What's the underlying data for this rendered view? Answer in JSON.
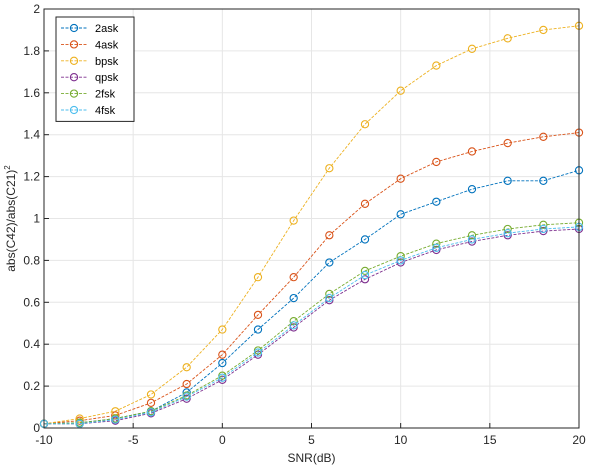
{
  "chart_data": {
    "type": "line",
    "xlabel": "SNR(dB)",
    "ylabel": "abs(C42)/abs(C21)",
    "ylabel_superscript": "2",
    "xlim": [
      -10,
      20
    ],
    "ylim": [
      0,
      2
    ],
    "grid": true,
    "legend_position": "top-left",
    "x": [
      -10,
      -8,
      -6,
      -4,
      -2,
      0,
      2,
      4,
      6,
      8,
      10,
      12,
      14,
      16,
      18,
      20
    ],
    "x_ticks": [
      "-10",
      "-5",
      "0",
      "5",
      "10",
      "15",
      "20"
    ],
    "y_ticks": [
      "0",
      "0.2",
      "0.4",
      "0.6",
      "0.8",
      "1",
      "1.2",
      "1.4",
      "1.6",
      "1.8",
      "2"
    ],
    "series": [
      {
        "name": "2ask",
        "color": "#0072BD",
        "values": [
          0.02,
          0.025,
          0.045,
          0.08,
          0.17,
          0.31,
          0.47,
          0.62,
          0.79,
          0.9,
          1.02,
          1.08,
          1.14,
          1.18,
          1.18,
          1.23
        ]
      },
      {
        "name": "4ask",
        "color": "#D95319",
        "values": [
          0.02,
          0.035,
          0.06,
          0.12,
          0.21,
          0.35,
          0.54,
          0.72,
          0.92,
          1.07,
          1.19,
          1.27,
          1.32,
          1.36,
          1.39,
          1.41
        ]
      },
      {
        "name": "bpsk",
        "color": "#EDB120",
        "values": [
          0.02,
          0.045,
          0.08,
          0.16,
          0.29,
          0.47,
          0.72,
          0.99,
          1.24,
          1.45,
          1.61,
          1.73,
          1.81,
          1.86,
          1.9,
          1.92
        ]
      },
      {
        "name": "qpsk",
        "color": "#7E2F8E",
        "values": [
          0.02,
          0.02,
          0.035,
          0.07,
          0.14,
          0.23,
          0.35,
          0.48,
          0.61,
          0.71,
          0.79,
          0.85,
          0.89,
          0.92,
          0.94,
          0.95
        ]
      },
      {
        "name": "2fsk",
        "color": "#77AC30",
        "values": [
          0.02,
          0.025,
          0.045,
          0.08,
          0.155,
          0.25,
          0.37,
          0.51,
          0.64,
          0.75,
          0.82,
          0.88,
          0.92,
          0.95,
          0.97,
          0.98
        ]
      },
      {
        "name": "4fsk",
        "color": "#4DBEEE",
        "values": [
          0.02,
          0.02,
          0.04,
          0.075,
          0.15,
          0.24,
          0.36,
          0.49,
          0.62,
          0.73,
          0.8,
          0.86,
          0.9,
          0.93,
          0.95,
          0.96
        ]
      }
    ]
  }
}
